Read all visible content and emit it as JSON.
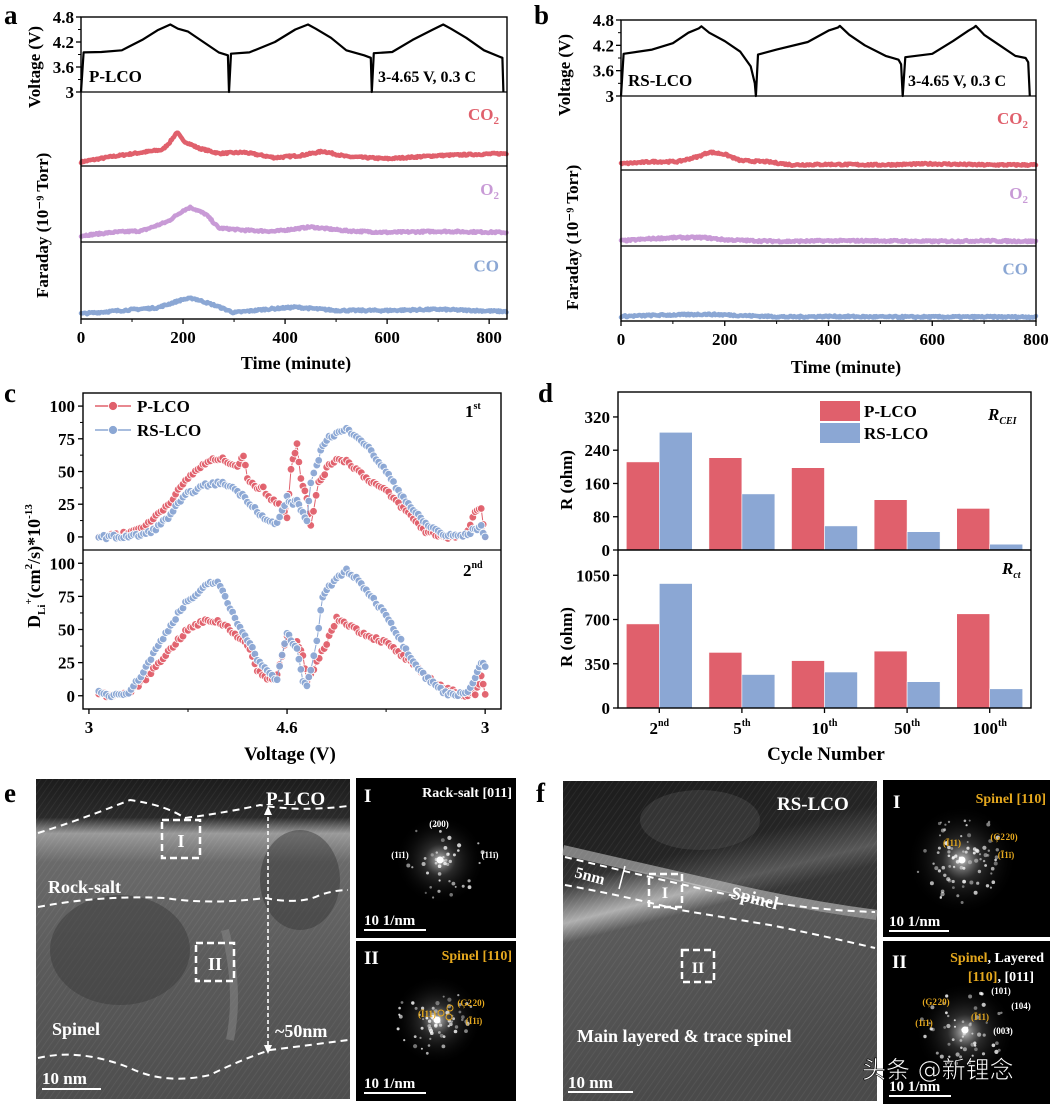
{
  "figure": {
    "panel_letters": {
      "a": "a",
      "b": "b",
      "c": "c",
      "d": "d",
      "e": "e",
      "f": "f"
    },
    "watermark": "头条 @新锂念"
  },
  "colors": {
    "p_lco": "#e0606c",
    "rs_lco": "#8ba7d4",
    "co2": "#e0606c",
    "o2": "#c89ad6",
    "co": "#8ba7d4",
    "voltage": "#000000",
    "fft_label_gold": "#e5a81e"
  },
  "chart_data": [
    {
      "id": "a",
      "type": "line",
      "sample_label": "P-LCO",
      "condition_label": "3-4.65 V, 0.3 C",
      "xlabel": "Time (minute)",
      "xlim": [
        0,
        835
      ],
      "xticks": [
        0,
        200,
        400,
        600,
        800
      ],
      "voltage": {
        "ylabel": "Voltage (V)",
        "ylim": [
          3,
          4.8
        ],
        "yticks": [
          "3",
          "3.6",
          "4.2",
          "4.8"
        ],
        "x": [
          0,
          5,
          40,
          80,
          120,
          150,
          175,
          190,
          210,
          240,
          270,
          288,
          290,
          294,
          330,
          380,
          420,
          445,
          460,
          490,
          520,
          555,
          568,
          570,
          574,
          610,
          650,
          690,
          710,
          725,
          755,
          790,
          820,
          826,
          828
        ],
        "y": [
          3,
          3.95,
          3.96,
          4.0,
          4.25,
          4.48,
          4.62,
          4.52,
          4.45,
          4.2,
          3.95,
          3.88,
          3,
          3.92,
          3.95,
          4.2,
          4.5,
          4.62,
          4.52,
          4.3,
          4.0,
          3.88,
          3.82,
          3,
          3.93,
          3.96,
          4.25,
          4.5,
          4.62,
          4.52,
          4.3,
          4.0,
          3.85,
          3.82,
          3
        ]
      },
      "gas": {
        "ylabel": "Faraday (10⁻⁹ Torr)",
        "series": [
          {
            "name": "CO₂",
            "x": [
              0,
              60,
              120,
              160,
              175,
              188,
              200,
              230,
              270,
              320,
              380,
              430,
              475,
              520,
              600,
              700,
              835
            ],
            "y": [
              0.02,
              0.12,
              0.2,
              0.25,
              0.4,
              0.58,
              0.42,
              0.28,
              0.18,
              0.2,
              0.1,
              0.14,
              0.22,
              0.12,
              0.08,
              0.14,
              0.18
            ]
          },
          {
            "name": "O₂",
            "x": [
              0,
              60,
              120,
              170,
              200,
              215,
              245,
              270,
              320,
              380,
              450,
              520,
              600,
              700,
              835
            ],
            "y": [
              0.06,
              0.12,
              0.15,
              0.32,
              0.52,
              0.58,
              0.45,
              0.2,
              0.16,
              0.14,
              0.22,
              0.15,
              0.12,
              0.14,
              0.12
            ]
          },
          {
            "name": "CO",
            "x": [
              0,
              80,
              150,
              200,
              220,
              260,
              300,
              360,
              420,
              500,
              600,
              700,
              835
            ],
            "y": [
              0.04,
              0.1,
              0.15,
              0.3,
              0.32,
              0.2,
              0.06,
              0.12,
              0.16,
              0.1,
              0.1,
              0.12,
              0.08
            ]
          }
        ]
      }
    },
    {
      "id": "b",
      "type": "line",
      "sample_label": "RS-LCO",
      "condition_label": "3-4.65 V, 0.3 C",
      "xlabel": "Time (minute)",
      "xlim": [
        0,
        800
      ],
      "xticks": [
        0,
        200,
        400,
        600,
        800
      ],
      "voltage": {
        "ylabel": "Voltage (V)",
        "ylim": [
          3,
          4.8
        ],
        "yticks": [
          "3",
          "3.6",
          "4.2",
          "4.8"
        ],
        "x": [
          0,
          5,
          60,
          100,
          130,
          150,
          155,
          170,
          200,
          230,
          250,
          258,
          260,
          264,
          300,
          360,
          400,
          418,
          422,
          440,
          470,
          510,
          535,
          540,
          543,
          548,
          600,
          640,
          670,
          680,
          684,
          700,
          730,
          760,
          780,
          785,
          788
        ],
        "y": [
          3,
          4.0,
          4.1,
          4.25,
          4.5,
          4.6,
          4.65,
          4.5,
          4.3,
          4.05,
          3.7,
          3.3,
          3,
          3.98,
          4.1,
          4.28,
          4.55,
          4.62,
          4.66,
          4.45,
          4.2,
          3.95,
          3.86,
          3.75,
          3,
          3.92,
          4.0,
          4.3,
          4.55,
          4.62,
          4.66,
          4.45,
          4.2,
          3.95,
          3.9,
          3.8,
          3
        ]
      },
      "gas": {
        "ylabel": "Faraday (10⁻⁹ Torr)",
        "series": [
          {
            "name": "CO₂",
            "x": [
              0,
              60,
              110,
              150,
              170,
              200,
              230,
              280,
              330,
              400,
              500,
              600,
              700,
              800
            ],
            "y": [
              0.06,
              0.1,
              0.1,
              0.2,
              0.28,
              0.24,
              0.12,
              0.1,
              0.04,
              0.05,
              0.04,
              0.06,
              0.04,
              0.04
            ]
          },
          {
            "name": "O₂",
            "x": [
              0,
              60,
              110,
              160,
              200,
              260,
              320,
              400,
              500,
              600,
              700,
              800
            ],
            "y": [
              0.04,
              0.08,
              0.1,
              0.1,
              0.06,
              0.04,
              0.03,
              0.04,
              0.04,
              0.03,
              0.04,
              0.03
            ]
          },
          {
            "name": "CO",
            "x": [
              0,
              60,
              120,
              160,
              200,
              250,
              320,
              400,
              500,
              600,
              700,
              800
            ],
            "y": [
              0.03,
              0.05,
              0.06,
              0.07,
              0.06,
              0.04,
              0.02,
              0.03,
              0.02,
              0.02,
              0.02,
              0.02
            ]
          }
        ]
      }
    },
    {
      "id": "c",
      "type": "scatter",
      "ylabel": "D_Li+ (cm²/s)*10⁻¹³",
      "ylabel_parts": {
        "main": "D",
        "sub": "Li",
        "sup": "+",
        "rest": "(cm",
        "sq": "2",
        "rest2": "/s)*10",
        "exp": "-13"
      },
      "xlabel": "Voltage (V)",
      "xticks": [
        "3",
        "4.6",
        "3"
      ],
      "note": "x-axis is a charge-discharge index: 0 = 3 V (start of charge), 1 = 4.6 V (top of charge), 2 = 3 V (end of discharge)",
      "xlim": [
        -0.03,
        2.08
      ],
      "ylim": [
        -10,
        110
      ],
      "yticks": [
        0,
        25,
        50,
        75,
        100
      ],
      "legend": [
        "P-LCO",
        "RS-LCO"
      ],
      "legend_position": "top-left",
      "panels": [
        {
          "label": "1st",
          "label_main": "1",
          "label_sup": "st",
          "series": [
            {
              "name": "P-LCO",
              "x": [
                0.05,
                0.1,
                0.2,
                0.3,
                0.35,
                0.4,
                0.45,
                0.5,
                0.55,
                0.6,
                0.65,
                0.7,
                0.75,
                0.78,
                0.8,
                0.85,
                0.88,
                0.92,
                0.96,
                1.0,
                1.02,
                1.05,
                1.07,
                1.1,
                1.12,
                1.16,
                1.18,
                1.2,
                1.25,
                1.3,
                1.35,
                1.4,
                1.5,
                1.6,
                1.65,
                1.7,
                1.8,
                1.9,
                1.95,
                1.98,
                2.0
              ],
              "y": [
                0,
                1,
                3,
                10,
                18,
                25,
                35,
                45,
                52,
                57,
                60,
                58,
                54,
                62,
                45,
                38,
                37,
                28,
                26,
                15,
                52,
                72,
                45,
                30,
                8,
                42,
                46,
                52,
                60,
                58,
                52,
                45,
                35,
                20,
                12,
                4,
                0,
                1,
                18,
                22,
                0
              ]
            },
            {
              "name": "RS-LCO",
              "x": [
                0.05,
                0.15,
                0.25,
                0.3,
                0.35,
                0.4,
                0.45,
                0.5,
                0.55,
                0.6,
                0.65,
                0.7,
                0.75,
                0.8,
                0.85,
                0.9,
                0.95,
                1.0,
                1.02,
                1.05,
                1.08,
                1.1,
                1.12,
                1.15,
                1.18,
                1.2,
                1.25,
                1.3,
                1.35,
                1.4,
                1.45,
                1.5,
                1.55,
                1.6,
                1.65,
                1.7,
                1.8,
                1.9,
                1.95,
                1.98,
                2.0
              ],
              "y": [
                0,
                0,
                1,
                3,
                8,
                15,
                25,
                33,
                37,
                40,
                41,
                40,
                35,
                28,
                20,
                12,
                10,
                30,
                25,
                28,
                18,
                12,
                40,
                55,
                70,
                75,
                79,
                82,
                78,
                70,
                60,
                50,
                38,
                28,
                18,
                10,
                1,
                1,
                6,
                8,
                0
              ]
            }
          ]
        },
        {
          "label": "2nd",
          "label_main": "2",
          "label_sup": "nd",
          "series": [
            {
              "name": "P-LCO",
              "x": [
                0.05,
                0.1,
                0.2,
                0.3,
                0.35,
                0.4,
                0.45,
                0.5,
                0.55,
                0.6,
                0.65,
                0.7,
                0.75,
                0.8,
                0.85,
                0.9,
                0.95,
                1.0,
                1.02,
                1.05,
                1.08,
                1.1,
                1.12,
                1.15,
                1.2,
                1.25,
                1.3,
                1.35,
                1.4,
                1.5,
                1.6,
                1.7,
                1.8,
                1.9,
                1.95,
                1.98,
                2.0
              ],
              "y": [
                2,
                0,
                2,
                15,
                25,
                33,
                42,
                50,
                54,
                57,
                56,
                52,
                45,
                38,
                20,
                12,
                16,
                45,
                42,
                40,
                30,
                10,
                15,
                25,
                40,
                58,
                55,
                50,
                46,
                40,
                28,
                15,
                5,
                0,
                2,
                14,
                1
              ]
            },
            {
              "name": "RS-LCO",
              "x": [
                0.05,
                0.1,
                0.2,
                0.25,
                0.3,
                0.35,
                0.4,
                0.45,
                0.5,
                0.55,
                0.6,
                0.65,
                0.7,
                0.75,
                0.8,
                0.85,
                0.9,
                0.95,
                1.0,
                1.02,
                1.05,
                1.08,
                1.1,
                1.12,
                1.15,
                1.18,
                1.2,
                1.25,
                1.3,
                1.35,
                1.4,
                1.45,
                1.5,
                1.55,
                1.6,
                1.65,
                1.7,
                1.8,
                1.9,
                1.95,
                1.98,
                2.0
              ],
              "y": [
                2,
                0,
                3,
                12,
                25,
                38,
                50,
                62,
                72,
                76,
                85,
                86,
                70,
                55,
                43,
                28,
                18,
                12,
                48,
                42,
                35,
                12,
                8,
                20,
                40,
                75,
                80,
                88,
                95,
                88,
                80,
                70,
                62,
                48,
                35,
                24,
                14,
                2,
                1,
                14,
                25,
                22
              ]
            }
          ]
        }
      ]
    },
    {
      "id": "d",
      "type": "bar",
      "categories": [
        "2nd",
        "5th",
        "10th",
        "50th",
        "100th"
      ],
      "category_parts": [
        [
          "2",
          "nd"
        ],
        [
          "5",
          "th"
        ],
        [
          "10",
          "th"
        ],
        [
          "50",
          "th"
        ],
        [
          "100",
          "th"
        ]
      ],
      "xlabel": "Cycle Number",
      "legend": [
        "P-LCO",
        "RS-LCO"
      ],
      "legend_position": "top-center",
      "panels": [
        {
          "label": "R_CEI",
          "label_main": "R",
          "label_sub": "CEI",
          "ylabel": "R (ohm)",
          "ylim": [
            0,
            380
          ],
          "yticks": [
            0,
            80,
            160,
            240,
            320
          ],
          "series": [
            {
              "name": "P-LCO",
              "values": [
                212,
                222,
                198,
                121,
                100
              ]
            },
            {
              "name": "RS-LCO",
              "values": [
                283,
                135,
                58,
                44,
                14
              ]
            }
          ]
        },
        {
          "label": "R_ct",
          "label_main": "R",
          "label_sub": "ct",
          "ylabel": "R (ohm)",
          "ylim": [
            0,
            1250
          ],
          "yticks": [
            0,
            350,
            700,
            1050
          ],
          "series": [
            {
              "name": "P-LCO",
              "values": [
                665,
                440,
                375,
                450,
                745
              ]
            },
            {
              "name": "RS-LCO",
              "values": [
                985,
                265,
                285,
                208,
                152
              ]
            }
          ]
        }
      ]
    }
  ],
  "micrographs": {
    "e": {
      "sample_label": "P-LCO",
      "region_labels": [
        "Rock-salt",
        "Spinel"
      ],
      "box_labels": [
        "I",
        "II"
      ],
      "thickness_label": "~50nm",
      "scale_bar": "10 nm",
      "fft": [
        {
          "roman": "I",
          "title": "Rack-salt [011]",
          "title_color": "white",
          "spots": [
            "(200)",
            "(1ī1)",
            "(11ī)"
          ],
          "scale_bar": "10 1/nm"
        },
        {
          "roman": "II",
          "title": "Spinel [110]",
          "title_color": "gold",
          "spots": [
            "(Ī11)",
            "(Ģ2 20)",
            "(Ī1ī)"
          ],
          "scale_bar": "10 1/nm"
        }
      ]
    },
    "f": {
      "sample_label": "RS-LCO",
      "region_labels": [
        "Spinel",
        "Main layered & trace spinel"
      ],
      "box_labels": [
        "I",
        "II"
      ],
      "thickness_label": "5nm",
      "scale_bar": "10 nm",
      "fft": [
        {
          "roman": "I",
          "title": "Spinel [110]",
          "title_color": "gold",
          "spots": [
            "(Ī11)",
            "(Ģ2 20)",
            "(Ī1ī)"
          ],
          "scale_bar": "10 1/nm"
        },
        {
          "roman": "II",
          "title_line1_gold": "Spinel",
          "title_line1_white": ", Layered",
          "title_line2_gold": "[110]",
          "title_line2_white": ", [011]",
          "spots_gold": [
            "(Ģ2 20)",
            "(1ī1)",
            "(Ī11)"
          ],
          "spots_white": [
            "(101)",
            "(104)",
            "(003)"
          ],
          "scale_bar": "10 1/nm"
        }
      ]
    }
  }
}
